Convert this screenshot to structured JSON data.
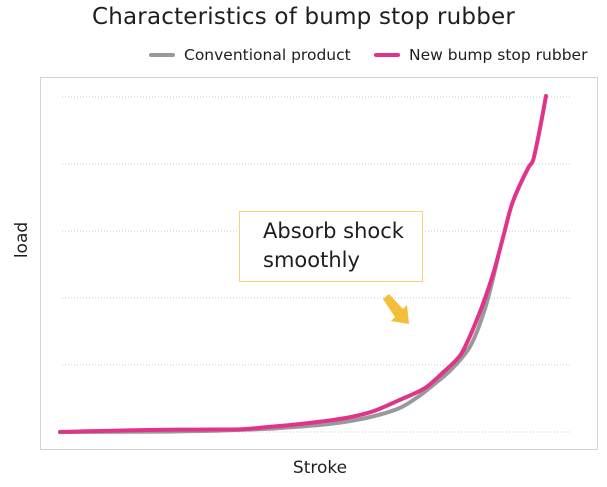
{
  "chart_data": {
    "type": "line",
    "title": "Characteristics of bump stop rubber",
    "xlabel": "Stroke",
    "ylabel": "load",
    "grid": true,
    "legend_position": "top-right",
    "annotation": {
      "lines": [
        "Absorb shock",
        "smoothly"
      ]
    },
    "series": [
      {
        "name": "Conventional product",
        "color": "#999999",
        "points": [
          [
            0,
            0
          ],
          [
            40,
            0.2
          ],
          [
            80,
            0.3
          ],
          [
            120,
            0.6
          ],
          [
            150,
            1.3
          ],
          [
            180,
            2
          ],
          [
            210,
            3.3
          ],
          [
            240,
            4.8
          ],
          [
            270,
            7.5
          ],
          [
            300,
            10.5
          ],
          [
            330,
            15.5
          ],
          [
            360,
            23
          ],
          [
            390,
            35
          ],
          [
            410,
            50
          ],
          [
            430,
            70
          ],
          [
            450,
            92
          ],
          [
            470,
            122
          ],
          [
            480,
            148
          ],
          [
            490,
            185
          ],
          [
            497,
            218
          ],
          [
            505,
            262
          ]
        ]
      },
      {
        "name": "New bump stop rubber",
        "color": "#e0338a",
        "points": [
          [
            0,
            0
          ],
          [
            30,
            1
          ],
          [
            60,
            2
          ],
          [
            100,
            3
          ],
          [
            140,
            3.5
          ],
          [
            180,
            3.7
          ],
          [
            210,
            4
          ],
          [
            240,
            7.5
          ],
          [
            270,
            11
          ],
          [
            300,
            15.5
          ],
          [
            330,
            21
          ],
          [
            360,
            30.5
          ],
          [
            390,
            47
          ],
          [
            420,
            65
          ],
          [
            440,
            87
          ],
          [
            460,
            112
          ],
          [
            470,
            136
          ],
          [
            480,
            166
          ],
          [
            490,
            200
          ],
          [
            500,
            239
          ],
          [
            510,
            287
          ],
          [
            520,
            336
          ],
          [
            530,
            368
          ],
          [
            540,
            394
          ],
          [
            545,
            404
          ],
          [
            550,
            432
          ],
          [
            555,
            465
          ],
          [
            560,
            500
          ]
        ]
      }
    ]
  }
}
